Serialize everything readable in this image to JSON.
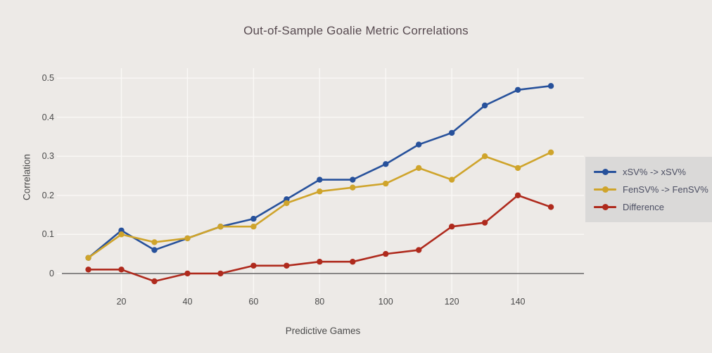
{
  "title": "Out-of-Sample Goalie Metric Correlations",
  "chart_data": {
    "type": "line",
    "title": "Out-of-Sample Goalie Metric Correlations",
    "xlabel": "Predictive Games",
    "ylabel": "Correlation",
    "x": [
      10,
      20,
      30,
      40,
      50,
      60,
      70,
      80,
      90,
      100,
      110,
      120,
      130,
      140,
      150
    ],
    "series": [
      {
        "name": "xSV% -> xSV%",
        "color": "#27519B",
        "values": [
          0.04,
          0.11,
          0.06,
          0.09,
          0.12,
          0.14,
          0.19,
          0.24,
          0.24,
          0.28,
          0.33,
          0.36,
          0.43,
          0.47,
          0.48
        ]
      },
      {
        "name": "FenSV% -> FenSV%",
        "color": "#CFA42B",
        "values": [
          0.04,
          0.1,
          0.08,
          0.09,
          0.12,
          0.12,
          0.18,
          0.21,
          0.22,
          0.23,
          0.27,
          0.24,
          0.3,
          0.27,
          0.31
        ]
      },
      {
        "name": "Difference",
        "color": "#AF2A1D",
        "values": [
          0.01,
          0.01,
          -0.02,
          0.0,
          0.0,
          0.02,
          0.02,
          0.03,
          0.03,
          0.05,
          0.06,
          0.12,
          0.13,
          0.2,
          0.17
        ]
      }
    ],
    "x_ticks": [
      20,
      40,
      60,
      80,
      100,
      120,
      140
    ],
    "x_tick_labels": [
      "20",
      "40",
      "60",
      "80",
      "100",
      "120",
      "140"
    ],
    "y_ticks": [
      0,
      0.1,
      0.2,
      0.3,
      0.4,
      0.5
    ],
    "y_tick_labels": [
      "0",
      "0.1",
      "0.2",
      "0.3",
      "0.4",
      "0.5"
    ],
    "xlim": [
      2,
      160
    ],
    "ylim": [
      -0.038,
      0.529
    ],
    "grid": true,
    "zero_line": true,
    "legend_position": "right-outside"
  },
  "colors": {
    "background": "#EDEAE7",
    "gridline": "#FAF8F6",
    "zero_line": "#5B5B5B",
    "tick_text": "#4A4A4A",
    "axis_title_text": "#4A4A4A",
    "title_text": "#574A50",
    "legend_background": "#DAD9D8",
    "legend_text": "#4C4F63"
  }
}
